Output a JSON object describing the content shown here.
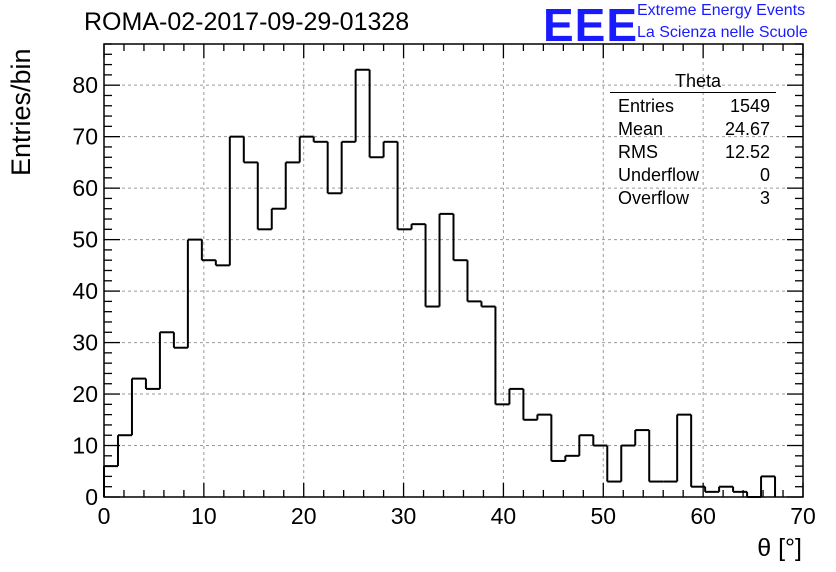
{
  "title": "ROMA-02-2017-09-29-01328",
  "logo": {
    "mark": "EEE",
    "line1": "Extreme Energy Events",
    "line2": "La Scienza nelle Scuole"
  },
  "stats_box": {
    "title": "Theta",
    "rows": [
      {
        "label": "Entries",
        "value": "1549"
      },
      {
        "label": "Mean",
        "value": "24.67"
      },
      {
        "label": "RMS",
        "value": "12.52"
      },
      {
        "label": "Underflow",
        "value": "0"
      },
      {
        "label": "Overflow",
        "value": "3"
      }
    ]
  },
  "chart_data": {
    "type": "bar",
    "style": "step-histogram",
    "title": "ROMA-02-2017-09-29-01328",
    "xlabel": "θ [°]",
    "ylabel": "Entries/bin",
    "xlim": [
      0,
      70
    ],
    "ylim": [
      0,
      88
    ],
    "x_ticks": [
      0,
      10,
      20,
      30,
      40,
      50,
      60,
      70
    ],
    "y_ticks": [
      0,
      10,
      20,
      30,
      40,
      50,
      60,
      70,
      80
    ],
    "grid": true,
    "bin_width": 1.4,
    "values": [
      6,
      12,
      23,
      21,
      32,
      29,
      50,
      46,
      45,
      70,
      65,
      52,
      56,
      65,
      70,
      69,
      59,
      69,
      83,
      66,
      69,
      52,
      53,
      37,
      55,
      46,
      38,
      37,
      18,
      21,
      15,
      16,
      7,
      8,
      12,
      10,
      3,
      10,
      13,
      3,
      3,
      16,
      2,
      1,
      2,
      1,
      0,
      4
    ],
    "line_color": "#000000",
    "grid_color": "#9a9a9a"
  }
}
